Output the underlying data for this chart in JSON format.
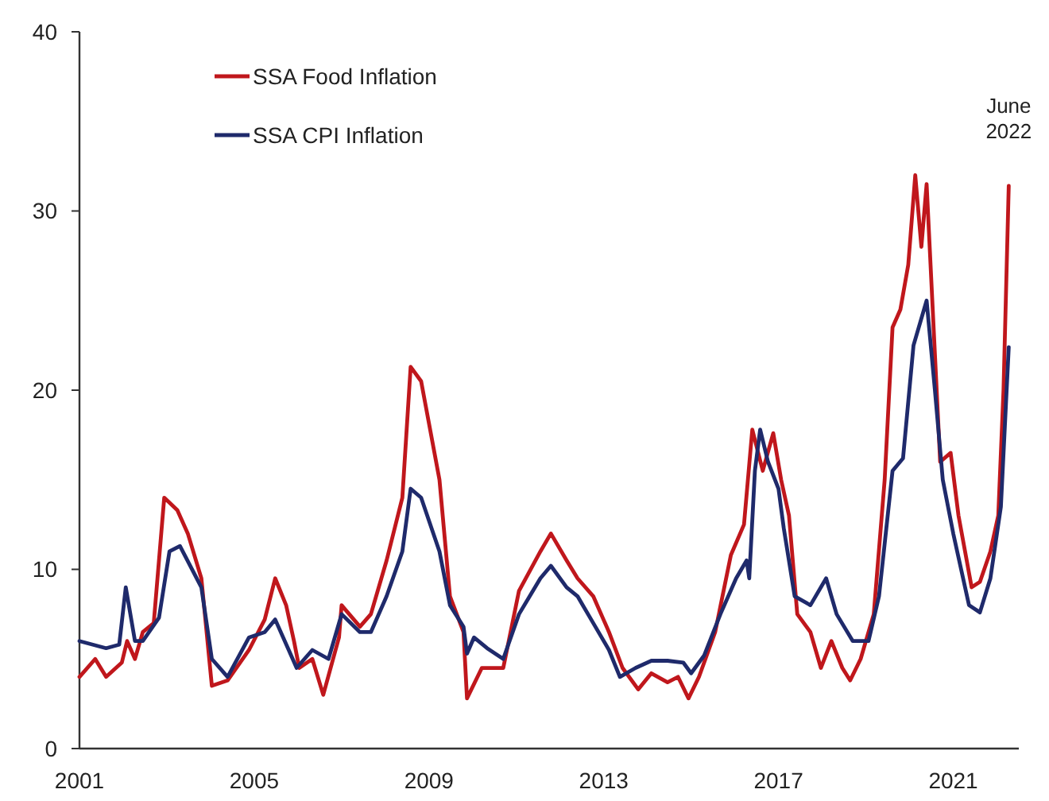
{
  "chart_data": {
    "type": "line",
    "xlim": [
      2001,
      2022.5
    ],
    "xticks": [
      2001,
      2005,
      2009,
      2013,
      2017,
      2021
    ],
    "ylim": [
      0,
      40
    ],
    "yticks": [
      0,
      10,
      20,
      30,
      40
    ],
    "grid": false,
    "legend": "top left",
    "line_style": "solid",
    "marker": "none",
    "annotations": [
      {
        "text": "June 2022",
        "x": 2022.27,
        "y": 31.4
      }
    ],
    "series": [
      {
        "name": "SSA Food Inflation",
        "color": "#c0171c",
        "x": [
          2001.0,
          2001.36,
          2001.61,
          2001.97,
          2002.09,
          2002.27,
          2002.45,
          2002.7,
          2002.94,
          2003.24,
          2003.48,
          2003.79,
          2004.03,
          2004.39,
          2004.88,
          2005.24,
          2005.48,
          2005.73,
          2005.91,
          2006.03,
          2006.33,
          2006.58,
          2006.94,
          2007.0,
          2007.42,
          2007.67,
          2008.03,
          2008.39,
          2008.58,
          2008.82,
          2009.24,
          2009.48,
          2009.79,
          2009.87,
          2010.21,
          2010.7,
          2011.06,
          2011.55,
          2011.79,
          2012.15,
          2012.4,
          2012.76,
          2013.12,
          2013.43,
          2013.79,
          2014.09,
          2014.46,
          2014.7,
          2014.94,
          2015.18,
          2015.55,
          2015.91,
          2016.21,
          2016.4,
          2016.64,
          2016.88,
          2017.06,
          2017.24,
          2017.43,
          2017.73,
          2017.97,
          2018.21,
          2018.46,
          2018.64,
          2018.88,
          2019.18,
          2019.43,
          2019.61,
          2019.79,
          2019.97,
          2020.13,
          2020.27,
          2020.39,
          2020.58,
          2020.7,
          2020.94,
          2021.12,
          2021.42,
          2021.61,
          2021.85,
          2022.03,
          2022.15,
          2022.27
        ],
        "values": [
          4.0,
          5.0,
          4.0,
          4.8,
          6.0,
          5.0,
          6.5,
          7.0,
          14.0,
          13.3,
          12.0,
          9.5,
          3.5,
          3.8,
          5.5,
          7.2,
          9.5,
          8.0,
          6.0,
          4.5,
          5.0,
          3.0,
          6.2,
          8.0,
          6.8,
          7.5,
          10.5,
          14.0,
          21.3,
          20.5,
          15.0,
          8.5,
          6.5,
          2.8,
          4.5,
          4.5,
          8.8,
          11.0,
          12.0,
          10.5,
          9.5,
          8.5,
          6.5,
          4.5,
          3.3,
          4.2,
          3.7,
          4.0,
          2.8,
          4.0,
          6.5,
          10.8,
          12.5,
          17.8,
          15.5,
          17.6,
          15.0,
          13.0,
          7.5,
          6.5,
          4.5,
          6.0,
          4.5,
          3.8,
          5.0,
          7.5,
          15.0,
          23.5,
          24.5,
          27.0,
          32.0,
          28.0,
          31.5,
          22.0,
          16.0,
          16.5,
          13.0,
          9.0,
          9.3,
          11.0,
          13.0,
          20.0,
          31.4
        ]
      },
      {
        "name": "SSA CPI Inflation",
        "color": "#1f2a6b",
        "x": [
          2001.0,
          2001.61,
          2001.91,
          2002.06,
          2002.27,
          2002.45,
          2002.82,
          2003.06,
          2003.3,
          2003.79,
          2004.03,
          2004.39,
          2004.88,
          2005.24,
          2005.48,
          2005.79,
          2005.97,
          2006.33,
          2006.7,
          2007.0,
          2007.42,
          2007.67,
          2008.03,
          2008.39,
          2008.58,
          2008.82,
          2009.24,
          2009.48,
          2009.79,
          2009.87,
          2010.03,
          2010.33,
          2010.7,
          2011.06,
          2011.55,
          2011.79,
          2012.15,
          2012.4,
          2012.76,
          2013.12,
          2013.37,
          2013.73,
          2014.09,
          2014.46,
          2014.82,
          2015.0,
          2015.3,
          2015.67,
          2016.03,
          2016.27,
          2016.33,
          2016.46,
          2016.58,
          2016.76,
          2017.0,
          2017.12,
          2017.37,
          2017.73,
          2018.09,
          2018.33,
          2018.7,
          2019.06,
          2019.3,
          2019.61,
          2019.85,
          2020.09,
          2020.39,
          2020.58,
          2020.76,
          2021.0,
          2021.36,
          2021.61,
          2021.85,
          2022.09,
          2022.27
        ],
        "values": [
          6.0,
          5.6,
          5.8,
          9.0,
          6.0,
          6.0,
          7.3,
          11.0,
          11.3,
          9.0,
          5.0,
          4.0,
          6.2,
          6.5,
          7.2,
          5.5,
          4.5,
          5.5,
          5.0,
          7.5,
          6.5,
          6.5,
          8.5,
          11.0,
          14.5,
          14.0,
          11.0,
          8.0,
          6.8,
          5.3,
          6.2,
          5.6,
          5.0,
          7.5,
          9.5,
          10.2,
          9.0,
          8.5,
          7.0,
          5.5,
          4.0,
          4.5,
          4.9,
          4.9,
          4.8,
          4.2,
          5.2,
          7.5,
          9.5,
          10.5,
          9.5,
          15.5,
          17.8,
          16.0,
          14.5,
          12.3,
          8.5,
          8.0,
          9.5,
          7.5,
          6.0,
          6.0,
          8.5,
          15.5,
          16.2,
          22.5,
          25.0,
          20.0,
          15.0,
          12.0,
          8.0,
          7.6,
          9.5,
          13.5,
          22.4
        ]
      }
    ]
  }
}
